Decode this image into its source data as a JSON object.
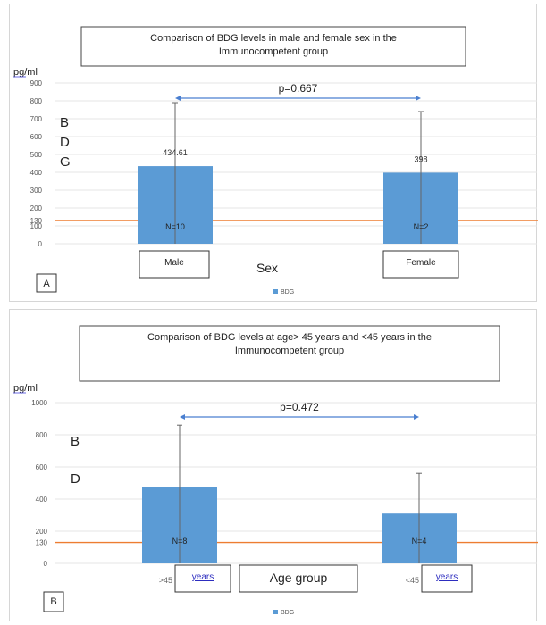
{
  "chart_data": [
    {
      "type": "bar",
      "title_line1": "Comparison of BDG levels in male and female sex in the",
      "title_line2": "Immunocompetent group",
      "ylabel": "pg/ml",
      "ylabel_vertical": [
        "B",
        "D",
        "G"
      ],
      "xlabel": "Sex",
      "categories": [
        "Male",
        "Female"
      ],
      "values": [
        434.61,
        398
      ],
      "error_high": [
        790,
        740
      ],
      "data_labels": [
        "434.61",
        "398"
      ],
      "n_labels": [
        "N=10",
        "N=2"
      ],
      "ylim": [
        0,
        900
      ],
      "yticks": [
        "0",
        "100",
        "130",
        "200",
        "300",
        "400",
        "500",
        "600",
        "700",
        "800",
        "900"
      ],
      "reference_line": 130,
      "pvalue": "p=0.667",
      "legend": "BDG",
      "panel_label": "A",
      "bar_color": "#5b9bd5",
      "reference_color": "#ed7d31"
    },
    {
      "type": "bar",
      "title_line1": "Comparison of BDG levels at age> 45 years and <45 years in the",
      "title_line2": "Immunocompetent group",
      "ylabel": "pg/ml",
      "ylabel_vertical": [
        "B",
        "D"
      ],
      "xlabel": "Age group",
      "categories_prefix": [
        ">45",
        "<45"
      ],
      "categories_suffix": [
        "years",
        "years"
      ],
      "values": [
        475,
        310
      ],
      "error_high": [
        860,
        560
      ],
      "n_labels": [
        "N=8",
        "N=4"
      ],
      "ylim": [
        0,
        1000
      ],
      "yticks": [
        "0",
        "130",
        "200",
        "400",
        "600",
        "800",
        "1000"
      ],
      "reference_line": 130,
      "pvalue": "p=0.472",
      "legend": "BDG",
      "panel_label": "B",
      "bar_color": "#5b9bd5",
      "reference_color": "#ed7d31"
    }
  ]
}
